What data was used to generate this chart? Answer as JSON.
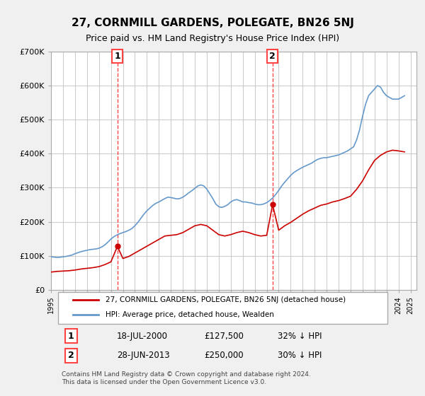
{
  "title": "27, CORNMILL GARDENS, POLEGATE, BN26 5NJ",
  "subtitle": "Price paid vs. HM Land Registry's House Price Index (HPI)",
  "xlabel": "",
  "ylabel": "",
  "ylim": [
    0,
    700000
  ],
  "yticks": [
    0,
    100000,
    200000,
    300000,
    400000,
    500000,
    600000,
    700000
  ],
  "ytick_labels": [
    "£0",
    "£100K",
    "£200K",
    "£300K",
    "£400K",
    "£500K",
    "£600K",
    "£700K"
  ],
  "xlim_start": 1995.0,
  "xlim_end": 2025.5,
  "background_color": "#f0f0f0",
  "plot_background": "#ffffff",
  "red_line_color": "#cc0000",
  "blue_line_color": "#6699cc",
  "vline_color": "#ff4444",
  "marker1_year": 2000.54,
  "marker2_year": 2013.49,
  "marker1_value": 127500,
  "marker2_value": 250000,
  "annotation1_label": "1",
  "annotation2_label": "2",
  "legend_red_label": "27, CORNMILL GARDENS, POLEGATE, BN26 5NJ (detached house)",
  "legend_blue_label": "HPI: Average price, detached house, Wealden",
  "table_row1": [
    "1",
    "18-JUL-2000",
    "£127,500",
    "32% ↓ HPI"
  ],
  "table_row2": [
    "2",
    "28-JUN-2013",
    "£250,000",
    "30% ↓ HPI"
  ],
  "footer": "Contains HM Land Registry data © Crown copyright and database right 2024.\nThis data is licensed under the Open Government Licence v3.0.",
  "hpi_years": [
    1995.0,
    1995.25,
    1995.5,
    1995.75,
    1996.0,
    1996.25,
    1996.5,
    1996.75,
    1997.0,
    1997.25,
    1997.5,
    1997.75,
    1998.0,
    1998.25,
    1998.5,
    1998.75,
    1999.0,
    1999.25,
    1999.5,
    1999.75,
    2000.0,
    2000.25,
    2000.5,
    2000.75,
    2001.0,
    2001.25,
    2001.5,
    2001.75,
    2002.0,
    2002.25,
    2002.5,
    2002.75,
    2003.0,
    2003.25,
    2003.5,
    2003.75,
    2004.0,
    2004.25,
    2004.5,
    2004.75,
    2005.0,
    2005.25,
    2005.5,
    2005.75,
    2006.0,
    2006.25,
    2006.5,
    2006.75,
    2007.0,
    2007.25,
    2007.5,
    2007.75,
    2008.0,
    2008.25,
    2008.5,
    2008.75,
    2009.0,
    2009.25,
    2009.5,
    2009.75,
    2010.0,
    2010.25,
    2010.5,
    2010.75,
    2011.0,
    2011.25,
    2011.5,
    2011.75,
    2012.0,
    2012.25,
    2012.5,
    2012.75,
    2013.0,
    2013.25,
    2013.5,
    2013.75,
    2014.0,
    2014.25,
    2014.5,
    2014.75,
    2015.0,
    2015.25,
    2015.5,
    2015.75,
    2016.0,
    2016.25,
    2016.5,
    2016.75,
    2017.0,
    2017.25,
    2017.5,
    2017.75,
    2018.0,
    2018.25,
    2018.5,
    2018.75,
    2019.0,
    2019.25,
    2019.5,
    2019.75,
    2020.0,
    2020.25,
    2020.5,
    2020.75,
    2021.0,
    2021.25,
    2021.5,
    2021.75,
    2022.0,
    2022.25,
    2022.5,
    2022.75,
    2023.0,
    2023.25,
    2023.5,
    2023.75,
    2024.0,
    2024.25,
    2024.5
  ],
  "hpi_values": [
    97000,
    96000,
    95000,
    95500,
    97000,
    98000,
    100000,
    102000,
    106000,
    109000,
    112000,
    114000,
    116000,
    118000,
    119000,
    120000,
    122000,
    126000,
    132000,
    140000,
    149000,
    156000,
    161000,
    165000,
    168000,
    171000,
    175000,
    180000,
    188000,
    198000,
    210000,
    222000,
    232000,
    240000,
    248000,
    254000,
    258000,
    263000,
    268000,
    272000,
    271000,
    269000,
    267000,
    268000,
    272000,
    278000,
    285000,
    291000,
    298000,
    305000,
    308000,
    305000,
    296000,
    282000,
    268000,
    252000,
    244000,
    242000,
    245000,
    250000,
    258000,
    263000,
    265000,
    262000,
    258000,
    258000,
    256000,
    255000,
    252000,
    250000,
    250000,
    252000,
    256000,
    262000,
    270000,
    280000,
    292000,
    305000,
    316000,
    326000,
    336000,
    344000,
    350000,
    355000,
    360000,
    364000,
    368000,
    372000,
    378000,
    383000,
    386000,
    388000,
    388000,
    390000,
    392000,
    394000,
    396000,
    400000,
    404000,
    408000,
    414000,
    420000,
    440000,
    470000,
    510000,
    545000,
    570000,
    580000,
    590000,
    600000,
    595000,
    580000,
    570000,
    565000,
    560000,
    560000,
    560000,
    565000,
    570000
  ],
  "red_years": [
    1995.0,
    1995.5,
    1996.0,
    1996.5,
    1997.0,
    1997.5,
    1998.0,
    1998.5,
    1999.0,
    1999.5,
    2000.0,
    2000.54,
    2001.0,
    2001.5,
    2002.0,
    2002.5,
    2003.0,
    2003.5,
    2004.0,
    2004.5,
    2005.0,
    2005.5,
    2006.0,
    2006.5,
    2007.0,
    2007.5,
    2008.0,
    2008.5,
    2009.0,
    2009.5,
    2010.0,
    2010.5,
    2011.0,
    2011.5,
    2012.0,
    2012.5,
    2013.0,
    2013.49,
    2014.0,
    2014.5,
    2015.0,
    2015.5,
    2016.0,
    2016.5,
    2017.0,
    2017.5,
    2018.0,
    2018.5,
    2019.0,
    2019.5,
    2020.0,
    2020.5,
    2021.0,
    2021.5,
    2022.0,
    2022.5,
    2023.0,
    2023.5,
    2024.0,
    2024.5
  ],
  "red_values": [
    52000,
    54000,
    55000,
    56000,
    58000,
    61000,
    63000,
    65000,
    68000,
    74000,
    82000,
    127500,
    92000,
    98000,
    108000,
    118000,
    128000,
    138000,
    148000,
    158000,
    160000,
    162000,
    168000,
    178000,
    188000,
    192000,
    188000,
    175000,
    162000,
    158000,
    162000,
    168000,
    172000,
    168000,
    162000,
    158000,
    160000,
    250000,
    175000,
    188000,
    198000,
    210000,
    222000,
    232000,
    240000,
    248000,
    252000,
    258000,
    262000,
    268000,
    275000,
    295000,
    320000,
    352000,
    380000,
    395000,
    405000,
    410000,
    408000,
    405000
  ]
}
